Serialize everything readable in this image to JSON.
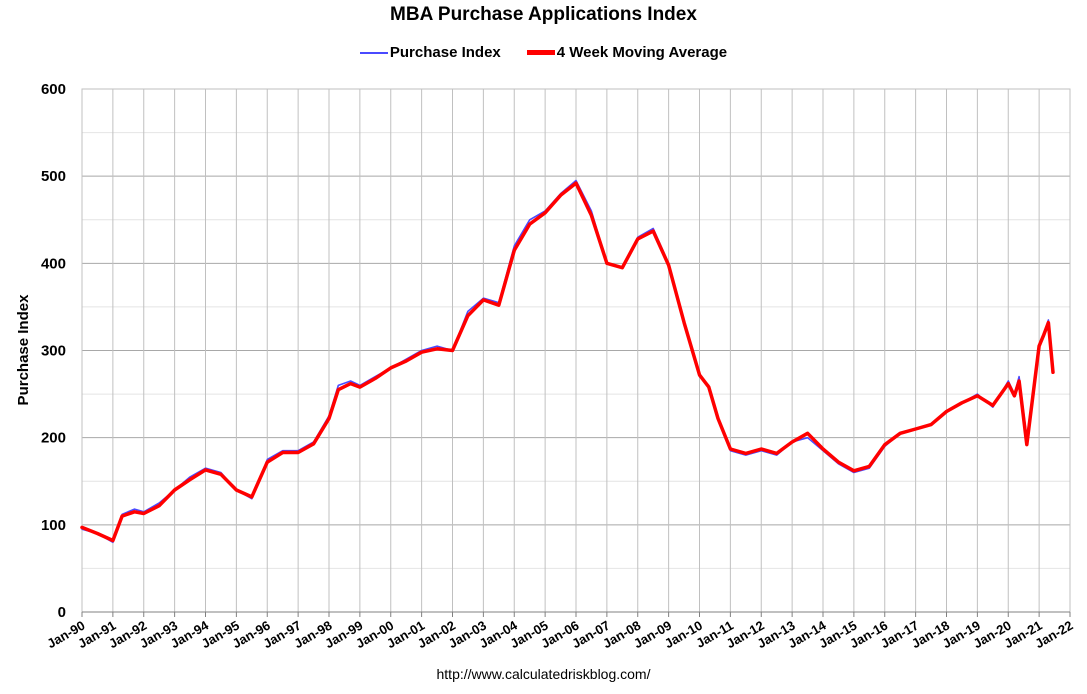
{
  "chart_data": {
    "type": "line",
    "title": "MBA Purchase Applications Index",
    "ylabel": "Purchase Index",
    "xlabel": "",
    "ylim": [
      0,
      600
    ],
    "yticks": [
      "0",
      "100",
      "200",
      "300",
      "400",
      "500",
      "600"
    ],
    "xticks": [
      "Jan-90",
      "Jan-91",
      "Jan-92",
      "Jan-93",
      "Jan-94",
      "Jan-95",
      "Jan-96",
      "Jan-97",
      "Jan-98",
      "Jan-99",
      "Jan-00",
      "Jan-01",
      "Jan-02",
      "Jan-03",
      "Jan-04",
      "Jan-05",
      "Jan-06",
      "Jan-07",
      "Jan-08",
      "Jan-09",
      "Jan-10",
      "Jan-11",
      "Jan-12",
      "Jan-13",
      "Jan-14",
      "Jan-15",
      "Jan-16",
      "Jan-17",
      "Jan-18",
      "Jan-19",
      "Jan-20",
      "Jan-21",
      "Jan-22"
    ],
    "grid": true,
    "legend_position": "top-center",
    "x_unit": "year",
    "x": [
      1990.0,
      1990.5,
      1991.0,
      1991.3,
      1991.7,
      1992.0,
      1992.5,
      1993.0,
      1993.5,
      1994.0,
      1994.5,
      1995.0,
      1995.5,
      1996.0,
      1996.5,
      1997.0,
      1997.5,
      1998.0,
      1998.3,
      1998.7,
      1999.0,
      1999.5,
      2000.0,
      2000.5,
      2001.0,
      2001.5,
      2002.0,
      2002.5,
      2003.0,
      2003.5,
      2004.0,
      2004.5,
      2005.0,
      2005.5,
      2006.0,
      2006.5,
      2007.0,
      2007.5,
      2008.0,
      2008.5,
      2009.0,
      2009.5,
      2010.0,
      2010.3,
      2010.6,
      2011.0,
      2011.5,
      2012.0,
      2012.5,
      2013.0,
      2013.5,
      2014.0,
      2014.5,
      2015.0,
      2015.5,
      2016.0,
      2016.5,
      2017.0,
      2017.5,
      2018.0,
      2018.5,
      2019.0,
      2019.5,
      2020.0,
      2020.2,
      2020.35,
      2020.6,
      2021.0,
      2021.15,
      2021.3,
      2021.45
    ],
    "series": [
      {
        "name": "Purchase Index",
        "color": "#4a4aff",
        "values": [
          95,
          90,
          80,
          112,
          118,
          115,
          125,
          140,
          155,
          165,
          160,
          140,
          130,
          175,
          185,
          185,
          195,
          225,
          260,
          265,
          260,
          270,
          280,
          290,
          300,
          305,
          300,
          345,
          360,
          355,
          420,
          450,
          460,
          480,
          495,
          460,
          400,
          395,
          430,
          440,
          400,
          330,
          270,
          260,
          220,
          185,
          180,
          185,
          180,
          195,
          200,
          185,
          170,
          160,
          165,
          190,
          205,
          210,
          215,
          230,
          240,
          250,
          235,
          265,
          250,
          270,
          200,
          305,
          320,
          335,
          280
        ]
      },
      {
        "name": "4 Week Moving Average",
        "color": "#ff0000",
        "values": [
          97,
          90,
          82,
          110,
          115,
          113,
          122,
          140,
          152,
          163,
          158,
          140,
          132,
          172,
          183,
          183,
          193,
          222,
          255,
          262,
          258,
          268,
          280,
          288,
          298,
          302,
          300,
          340,
          358,
          352,
          415,
          445,
          458,
          478,
          492,
          455,
          400,
          395,
          428,
          437,
          398,
          332,
          272,
          258,
          222,
          187,
          182,
          187,
          182,
          195,
          205,
          187,
          172,
          162,
          167,
          192,
          205,
          210,
          215,
          230,
          240,
          248,
          237,
          262,
          248,
          265,
          192,
          305,
          318,
          332,
          275
        ]
      }
    ]
  },
  "source_text": "http://www.calculatedriskblog.com/"
}
